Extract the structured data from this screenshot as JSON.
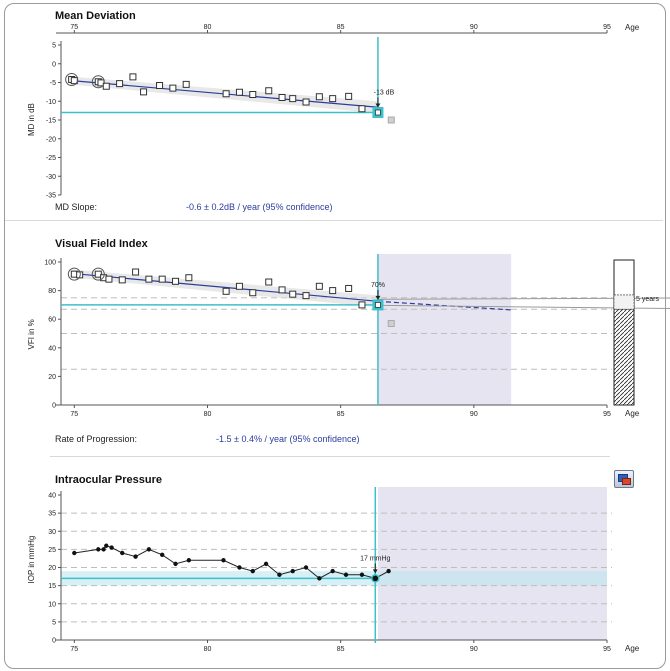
{
  "chart_data": [
    {
      "type": "scatter",
      "id": "md",
      "title": "Mean Deviation",
      "xlabel": "Age",
      "ylabel": "MD in dB",
      "xlim": [
        74.5,
        95
      ],
      "ylim": [
        -35,
        5
      ],
      "xticks": [
        "75",
        "80",
        "85",
        "90",
        "95"
      ],
      "yticks": [
        "5",
        "0",
        "-5",
        "-10",
        "-15",
        "-20",
        "-25",
        "-30",
        "-35"
      ],
      "points": [
        {
          "x": 74.9,
          "y": -4.2
        },
        {
          "x": 75.0,
          "y": -4.5
        },
        {
          "x": 75.9,
          "y": -4.8
        },
        {
          "x": 76.0,
          "y": -5.1
        },
        {
          "x": 76.2,
          "y": -6.0
        },
        {
          "x": 76.7,
          "y": -5.3
        },
        {
          "x": 77.2,
          "y": -3.5
        },
        {
          "x": 77.6,
          "y": -7.5
        },
        {
          "x": 78.2,
          "y": -5.8
        },
        {
          "x": 78.7,
          "y": -6.5
        },
        {
          "x": 79.2,
          "y": -5.5
        },
        {
          "x": 80.7,
          "y": -8.0
        },
        {
          "x": 81.2,
          "y": -7.6
        },
        {
          "x": 81.7,
          "y": -8.2
        },
        {
          "x": 82.3,
          "y": -7.2
        },
        {
          "x": 82.8,
          "y": -9.0
        },
        {
          "x": 83.2,
          "y": -9.3
        },
        {
          "x": 83.7,
          "y": -10.2
        },
        {
          "x": 84.2,
          "y": -8.8
        },
        {
          "x": 84.7,
          "y": -9.3
        },
        {
          "x": 85.3,
          "y": -8.7
        },
        {
          "x": 85.8,
          "y": -12.0
        },
        {
          "x": 86.4,
          "y": -13.0
        }
      ],
      "circled": [
        {
          "x": 74.9,
          "y": -4.2
        },
        {
          "x": 75.9,
          "y": -4.8
        }
      ],
      "excluded": [
        {
          "x": 86.9,
          "y": -15.0
        }
      ],
      "trend": {
        "x": [
          74.9,
          86.4
        ],
        "y": [
          -4.5,
          -11.6
        ]
      },
      "current": {
        "x": 86.4,
        "y": -13.0,
        "label": "-13 dB"
      },
      "stat_label": "MD Slope:",
      "stat_value": "-0.6 ± 0.2dB / year (95% confidence)"
    },
    {
      "type": "scatter",
      "id": "vfi",
      "title": "Visual Field Index",
      "xlabel": "Age",
      "ylabel": "VFI in %",
      "xlim": [
        74.5,
        95
      ],
      "ylim": [
        0,
        100
      ],
      "xticks": [
        "75",
        "80",
        "85",
        "90",
        "95"
      ],
      "yticks": [
        "100",
        "80",
        "60",
        "40",
        "20",
        "0"
      ],
      "points": [
        {
          "x": 75.0,
          "y": 91.5
        },
        {
          "x": 75.2,
          "y": 91.0
        },
        {
          "x": 75.9,
          "y": 91.5
        },
        {
          "x": 76.1,
          "y": 89.0
        },
        {
          "x": 76.3,
          "y": 88.0
        },
        {
          "x": 76.8,
          "y": 87.5
        },
        {
          "x": 77.3,
          "y": 93.0
        },
        {
          "x": 77.8,
          "y": 88.0
        },
        {
          "x": 78.3,
          "y": 88.0
        },
        {
          "x": 78.8,
          "y": 86.5
        },
        {
          "x": 79.3,
          "y": 89.0
        },
        {
          "x": 80.7,
          "y": 79.5
        },
        {
          "x": 81.2,
          "y": 83.0
        },
        {
          "x": 81.7,
          "y": 78.5
        },
        {
          "x": 82.3,
          "y": 86.0
        },
        {
          "x": 82.8,
          "y": 80.5
        },
        {
          "x": 83.2,
          "y": 77.5
        },
        {
          "x": 83.7,
          "y": 76.5
        },
        {
          "x": 84.2,
          "y": 83.0
        },
        {
          "x": 84.7,
          "y": 80.0
        },
        {
          "x": 85.3,
          "y": 81.5
        },
        {
          "x": 85.8,
          "y": 70.0
        },
        {
          "x": 86.4,
          "y": 70.0
        }
      ],
      "circled": [
        {
          "x": 75.0,
          "y": 91.5
        },
        {
          "x": 75.9,
          "y": 91.5
        }
      ],
      "excluded": [
        {
          "x": 86.9,
          "y": 57.0
        }
      ],
      "trend": {
        "x": [
          74.9,
          86.4
        ],
        "y": [
          92.0,
          72.5
        ]
      },
      "projection": {
        "x": [
          86.4,
          91.4
        ],
        "y": [
          72.5,
          66.5
        ]
      },
      "projection_band": [
        91.4,
        100
      ],
      "shaded_range": [
        86.4,
        91.4
      ],
      "current": {
        "x": 86.4,
        "y": 70.0,
        "label": "70%"
      },
      "side_bar": {
        "label": "5 years",
        "current": 67,
        "projected": 77
      },
      "stat_label": "Rate of Progression:",
      "stat_value": "-1.5 ± 0.4% / year (95% confidence)"
    },
    {
      "type": "line",
      "id": "iop",
      "title": "Intraocular Pressure",
      "xlabel": "Age",
      "ylabel": "IOP in mmHg",
      "xlim": [
        74.5,
        95
      ],
      "ylim": [
        0,
        40
      ],
      "xticks": [
        "75",
        "80",
        "85",
        "90",
        "95"
      ],
      "yticks": [
        "40",
        "35",
        "30",
        "25",
        "20",
        "15",
        "10",
        "5",
        "0"
      ],
      "points": [
        {
          "x": 75.0,
          "y": 24.0
        },
        {
          "x": 75.9,
          "y": 25.0
        },
        {
          "x": 76.1,
          "y": 25.0
        },
        {
          "x": 76.2,
          "y": 26.0
        },
        {
          "x": 76.4,
          "y": 25.5
        },
        {
          "x": 76.8,
          "y": 24.0
        },
        {
          "x": 77.3,
          "y": 23.0
        },
        {
          "x": 77.8,
          "y": 25.0
        },
        {
          "x": 78.3,
          "y": 23.5
        },
        {
          "x": 78.8,
          "y": 21.0
        },
        {
          "x": 79.3,
          "y": 22.0
        },
        {
          "x": 80.6,
          "y": 22.0
        },
        {
          "x": 81.2,
          "y": 20.0
        },
        {
          "x": 81.7,
          "y": 19.0
        },
        {
          "x": 82.2,
          "y": 21.0
        },
        {
          "x": 82.7,
          "y": 18.0
        },
        {
          "x": 83.2,
          "y": 19.0
        },
        {
          "x": 83.7,
          "y": 20.0
        },
        {
          "x": 84.2,
          "y": 17.0
        },
        {
          "x": 84.7,
          "y": 19.0
        },
        {
          "x": 85.2,
          "y": 18.0
        },
        {
          "x": 85.8,
          "y": 18.0
        },
        {
          "x": 86.3,
          "y": 17.0
        },
        {
          "x": 86.8,
          "y": 19.0
        }
      ],
      "band": [
        15,
        19
      ],
      "shaded_range": [
        86.4,
        95
      ],
      "current": {
        "x": 86.3,
        "y": 17.0,
        "label": "17 mmHg"
      }
    }
  ],
  "colors": {
    "trend": "#2a3d9e",
    "target": "#3cc0cc",
    "shade": "#e6e4f0",
    "iop_band": "#bde6ef",
    "marker": "#222222",
    "grid": "#bdbdbd"
  },
  "toolbar": {
    "export_icon": "export-image-icon"
  }
}
